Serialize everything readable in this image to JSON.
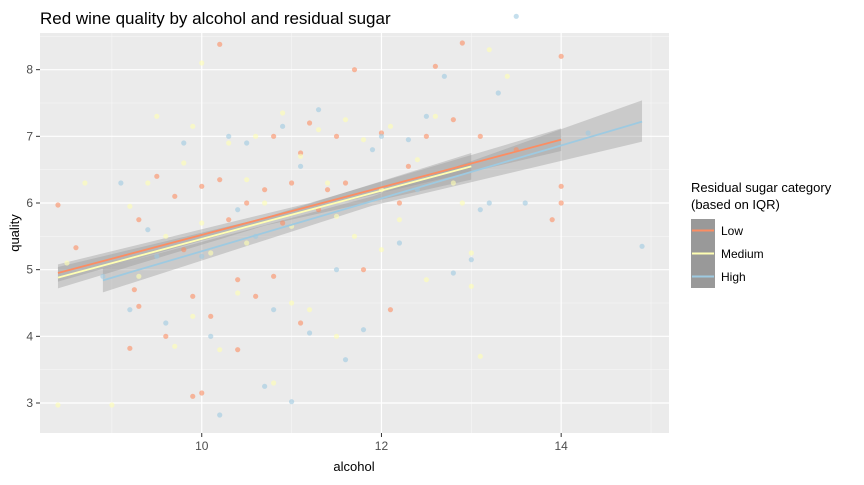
{
  "chart_data": {
    "type": "scatter",
    "title": "Red wine quality by alcohol and residual sugar",
    "xlabel": "alcohol",
    "ylabel": "quality",
    "xlim": [
      8.2,
      15.2
    ],
    "ylim": [
      2.55,
      8.55
    ],
    "x_ticks": [
      10,
      12,
      14
    ],
    "y_ticks": [
      3,
      4,
      5,
      6,
      7,
      8
    ],
    "grid": true,
    "background": "#ebebeb",
    "legend": {
      "title": "Residual sugar category\n(based on IQR)",
      "title_lines": [
        "Residual sugar category",
        "(based on IQR)"
      ],
      "placement": "right",
      "entries": [
        {
          "label": "Low",
          "color": "#fc8d62"
        },
        {
          "label": "Medium",
          "color": "#ffffb3"
        },
        {
          "label": "High",
          "color": "#9ecae1"
        }
      ]
    },
    "series": [
      {
        "name": "Low",
        "color": "#fc8d62",
        "points": [
          [
            8.4,
            5.97
          ],
          [
            8.6,
            5.33
          ],
          [
            9.2,
            3.82
          ],
          [
            9.25,
            4.7
          ],
          [
            9.3,
            4.45
          ],
          [
            9.5,
            6.4
          ],
          [
            9.6,
            4.0
          ],
          [
            9.7,
            6.1
          ],
          [
            9.8,
            5.3
          ],
          [
            9.9,
            4.6
          ],
          [
            10.0,
            6.25
          ],
          [
            10.1,
            4.3
          ],
          [
            10.2,
            6.35
          ],
          [
            10.2,
            8.38
          ],
          [
            10.3,
            5.75
          ],
          [
            10.4,
            3.8
          ],
          [
            10.5,
            6.0
          ],
          [
            10.6,
            4.6
          ],
          [
            10.7,
            6.2
          ],
          [
            10.8,
            7.0
          ],
          [
            10.9,
            5.7
          ],
          [
            11.0,
            6.3
          ],
          [
            11.1,
            4.2
          ],
          [
            11.2,
            7.2
          ],
          [
            11.3,
            5.9
          ],
          [
            11.4,
            6.2
          ],
          [
            11.5,
            7.0
          ],
          [
            11.6,
            6.3
          ],
          [
            11.8,
            5.0
          ],
          [
            12.0,
            7.05
          ],
          [
            12.1,
            4.4
          ],
          [
            12.3,
            6.55
          ],
          [
            12.5,
            7.0
          ],
          [
            12.6,
            8.05
          ],
          [
            12.8,
            7.25
          ],
          [
            12.9,
            8.4
          ],
          [
            13.1,
            7.0
          ],
          [
            13.5,
            6.8
          ],
          [
            13.9,
            5.75
          ],
          [
            14.0,
            6.25
          ],
          [
            14.0,
            8.2
          ],
          [
            14.0,
            6.0
          ],
          [
            10.0,
            3.15
          ],
          [
            9.9,
            3.1
          ],
          [
            10.4,
            4.85
          ],
          [
            11.7,
            8.0
          ],
          [
            12.2,
            6.0
          ],
          [
            9.3,
            5.75
          ],
          [
            10.8,
            4.9
          ],
          [
            11.1,
            6.75
          ]
        ],
        "fit": [
          [
            8.4,
            4.95
          ],
          [
            14.0,
            6.95
          ]
        ],
        "band": [
          [
            8.4,
            4.82,
            5.08
          ],
          [
            11.2,
            5.9,
            6.0
          ],
          [
            14.0,
            6.78,
            7.12
          ]
        ]
      },
      {
        "name": "Medium",
        "color": "#ffffb3",
        "points": [
          [
            8.4,
            2.97
          ],
          [
            8.5,
            5.1
          ],
          [
            8.7,
            6.3
          ],
          [
            9.0,
            2.97
          ],
          [
            9.2,
            5.95
          ],
          [
            9.4,
            6.3
          ],
          [
            9.5,
            7.3
          ],
          [
            9.6,
            5.5
          ],
          [
            9.7,
            3.85
          ],
          [
            9.8,
            6.6
          ],
          [
            9.9,
            7.15
          ],
          [
            10.0,
            8.1
          ],
          [
            10.1,
            5.25
          ],
          [
            10.2,
            3.8
          ],
          [
            10.3,
            6.9
          ],
          [
            10.4,
            4.65
          ],
          [
            10.5,
            5.4
          ],
          [
            10.6,
            7.0
          ],
          [
            10.7,
            6.0
          ],
          [
            10.8,
            3.3
          ],
          [
            10.9,
            7.35
          ],
          [
            11.0,
            5.65
          ],
          [
            11.1,
            6.7
          ],
          [
            11.2,
            4.4
          ],
          [
            11.3,
            7.1
          ],
          [
            11.4,
            6.3
          ],
          [
            11.5,
            5.8
          ],
          [
            11.6,
            7.25
          ],
          [
            11.7,
            5.5
          ],
          [
            11.8,
            6.95
          ],
          [
            12.0,
            6.2
          ],
          [
            12.1,
            7.15
          ],
          [
            12.2,
            5.75
          ],
          [
            12.4,
            6.65
          ],
          [
            12.5,
            4.85
          ],
          [
            12.6,
            7.3
          ],
          [
            12.8,
            6.3
          ],
          [
            12.9,
            6.0
          ],
          [
            13.0,
            4.75
          ],
          [
            13.1,
            3.7
          ],
          [
            13.2,
            8.3
          ],
          [
            13.4,
            7.9
          ],
          [
            9.3,
            4.9
          ],
          [
            10.0,
            5.7
          ],
          [
            11.0,
            4.5
          ],
          [
            12.0,
            5.3
          ],
          [
            10.5,
            6.35
          ],
          [
            11.5,
            4.0
          ],
          [
            9.9,
            4.3
          ],
          [
            13.0,
            5.25
          ]
        ],
        "fit": [
          [
            8.4,
            4.88
          ],
          [
            13.0,
            6.55
          ]
        ],
        "band": [
          [
            8.4,
            4.72,
            5.04
          ],
          [
            10.7,
            5.66,
            5.78
          ],
          [
            13.0,
            6.35,
            6.75
          ]
        ]
      },
      {
        "name": "High",
        "color": "#9ecae1",
        "points": [
          [
            8.9,
            4.9
          ],
          [
            9.1,
            6.3
          ],
          [
            9.2,
            4.4
          ],
          [
            9.4,
            5.6
          ],
          [
            9.6,
            4.2
          ],
          [
            9.8,
            6.9
          ],
          [
            10.0,
            5.2
          ],
          [
            10.1,
            4.0
          ],
          [
            10.2,
            2.82
          ],
          [
            10.3,
            7.0
          ],
          [
            10.4,
            5.9
          ],
          [
            10.5,
            6.9
          ],
          [
            10.7,
            3.25
          ],
          [
            10.8,
            4.4
          ],
          [
            10.9,
            7.15
          ],
          [
            11.0,
            3.02
          ],
          [
            11.1,
            6.55
          ],
          [
            11.2,
            4.05
          ],
          [
            11.3,
            7.4
          ],
          [
            11.5,
            5.0
          ],
          [
            11.6,
            3.65
          ],
          [
            11.8,
            4.1
          ],
          [
            12.0,
            7.0
          ],
          [
            12.2,
            5.4
          ],
          [
            12.4,
            6.2
          ],
          [
            12.5,
            7.3
          ],
          [
            12.7,
            7.9
          ],
          [
            12.8,
            4.95
          ],
          [
            13.0,
            5.15
          ],
          [
            13.2,
            6.0
          ],
          [
            13.3,
            7.65
          ],
          [
            13.6,
            6.0
          ],
          [
            14.3,
            7.05
          ],
          [
            14.9,
            5.35
          ],
          [
            13.5,
            8.8
          ],
          [
            11.9,
            6.8
          ],
          [
            10.6,
            5.5
          ],
          [
            9.5,
            5.2
          ],
          [
            12.3,
            6.95
          ],
          [
            13.1,
            5.9
          ]
        ],
        "fit": [
          [
            8.9,
            4.84
          ],
          [
            14.9,
            7.22
          ]
        ],
        "band": [
          [
            8.9,
            4.66,
            5.02
          ],
          [
            11.9,
            5.96,
            6.1
          ],
          [
            14.9,
            6.92,
            7.54
          ]
        ]
      }
    ]
  }
}
